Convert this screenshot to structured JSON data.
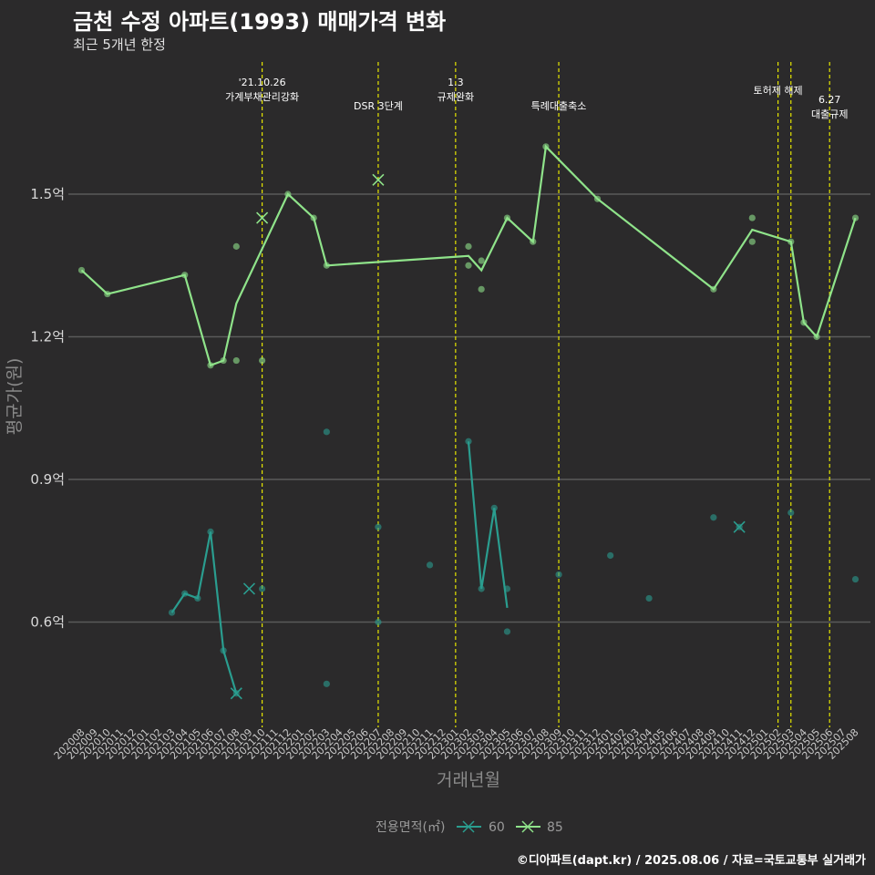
{
  "title": "금천 수정 아파트(1993) 매매가격 변화",
  "subtitle": "최근 5개년 한정",
  "caption": "©디아파트(dapt.kr) / 2025.08.06 / 자료=국토교통부 실거래가",
  "chart_data": {
    "type": "line",
    "title": "금천 수정 아파트(1993) 매매가격 변화",
    "subtitle": "최근 5개년 한정",
    "xlabel": "거래년월",
    "ylabel": "평균가(원)",
    "yticks": [
      {
        "value": 0.6,
        "label": "0.6억"
      },
      {
        "value": 0.9,
        "label": "0.9억"
      },
      {
        "value": 1.2,
        "label": "1.2억"
      },
      {
        "value": 1.5,
        "label": "1.5억"
      }
    ],
    "ylim": [
      0.415,
      1.71
    ],
    "grid": true,
    "legend": {
      "title": "전용면적(㎡)",
      "placement": "bottom",
      "entries": [
        "60",
        "85"
      ]
    },
    "colors": {
      "s60": "#2a9d8f",
      "s85": "#8fe38a",
      "event": "#e6e600",
      "grid": "#5a5a5a"
    },
    "categories": [
      "202008",
      "202009",
      "202010",
      "202011",
      "202012",
      "202101",
      "202102",
      "202103",
      "202104",
      "202105",
      "202106",
      "202107",
      "202108",
      "202109",
      "202110",
      "202111",
      "202112",
      "202201",
      "202202",
      "202203",
      "202204",
      "202205",
      "202206",
      "202207",
      "202208",
      "202209",
      "202210",
      "202211",
      "202212",
      "202301",
      "202302",
      "202303",
      "202304",
      "202305",
      "202306",
      "202307",
      "202308",
      "202309",
      "202310",
      "202311",
      "202312",
      "202401",
      "202402",
      "202403",
      "202404",
      "202405",
      "202406",
      "202407",
      "202408",
      "202409",
      "202410",
      "202411",
      "202412",
      "202501",
      "202502",
      "202503",
      "202504",
      "202505",
      "202506",
      "202507",
      "202508"
    ],
    "events": [
      {
        "x": "202110",
        "label": "'21.10.26\n가계부채관리강화"
      },
      {
        "x": "202207",
        "label": "DSR 3단계"
      },
      {
        "x": "202301",
        "label": "1.3\n규제완화"
      },
      {
        "x": "202309",
        "label": "특례대출축소"
      },
      {
        "x": "202502",
        "label": "토허제 해제"
      },
      {
        "x": "202503",
        "label": ""
      },
      {
        "x": "202506",
        "label": "6.27\n대출규제"
      }
    ],
    "series": [
      {
        "name": "85",
        "line": [
          [
            "202008",
            1.34
          ],
          [
            "202010",
            1.29
          ],
          [
            "202104",
            1.33
          ],
          [
            "202106",
            1.14
          ],
          [
            "202107",
            1.15
          ],
          [
            "202108",
            1.27
          ],
          [
            "202112",
            1.5
          ],
          [
            "202202",
            1.45
          ],
          [
            "202203",
            1.35
          ],
          [
            "202302",
            1.37
          ],
          [
            "202303",
            1.34
          ],
          [
            "202305",
            1.45
          ],
          [
            "202307",
            1.4
          ],
          [
            "202308",
            1.6
          ],
          [
            "202312",
            1.49
          ],
          [
            "202409",
            1.3
          ],
          [
            "202412",
            1.425
          ],
          [
            "202503",
            1.4
          ],
          [
            "202504",
            1.23
          ],
          [
            "202505",
            1.2
          ],
          [
            "202508",
            1.45
          ]
        ],
        "points": [
          [
            "202008",
            1.34
          ],
          [
            "202010",
            1.29
          ],
          [
            "202104",
            1.33
          ],
          [
            "202106",
            1.14
          ],
          [
            "202107",
            1.15
          ],
          [
            "202108",
            1.39
          ],
          [
            "202108",
            1.15
          ],
          [
            "202110",
            1.15
          ],
          [
            "202112",
            1.5
          ],
          [
            "202202",
            1.45
          ],
          [
            "202203",
            1.35
          ],
          [
            "202302",
            1.39
          ],
          [
            "202302",
            1.35
          ],
          [
            "202303",
            1.36
          ],
          [
            "202303",
            1.3
          ],
          [
            "202305",
            1.45
          ],
          [
            "202307",
            1.4
          ],
          [
            "202308",
            1.6
          ],
          [
            "202312",
            1.49
          ],
          [
            "202409",
            1.3
          ],
          [
            "202412",
            1.45
          ],
          [
            "202412",
            1.4
          ],
          [
            "202503",
            1.4
          ],
          [
            "202504",
            1.23
          ],
          [
            "202505",
            1.2
          ],
          [
            "202508",
            1.45
          ]
        ],
        "crosses": [
          [
            "202110",
            1.45
          ],
          [
            "202207",
            1.53
          ]
        ]
      },
      {
        "name": "60",
        "segments": [
          [
            [
              "202103",
              0.62
            ],
            [
              "202104",
              0.66
            ],
            [
              "202105",
              0.65
            ],
            [
              "202106",
              0.79
            ],
            [
              "202107",
              0.54
            ],
            [
              "202108",
              0.45
            ]
          ],
          [
            [
              "202302",
              0.98
            ],
            [
              "202303",
              0.67
            ],
            [
              "202304",
              0.84
            ],
            [
              "202305",
              0.63
            ]
          ]
        ],
        "points": [
          [
            "202103",
            0.62
          ],
          [
            "202104",
            0.66
          ],
          [
            "202105",
            0.65
          ],
          [
            "202106",
            0.79
          ],
          [
            "202107",
            0.54
          ],
          [
            "202108",
            0.45
          ],
          [
            "202110",
            0.67
          ],
          [
            "202203",
            1.0
          ],
          [
            "202203",
            0.47
          ],
          [
            "202207",
            0.8
          ],
          [
            "202207",
            0.6
          ],
          [
            "202211",
            0.72
          ],
          [
            "202302",
            0.98
          ],
          [
            "202303",
            0.67
          ],
          [
            "202304",
            0.84
          ],
          [
            "202305",
            0.67
          ],
          [
            "202305",
            0.58
          ],
          [
            "202309",
            0.7
          ],
          [
            "202401",
            0.74
          ],
          [
            "202404",
            0.65
          ],
          [
            "202409",
            0.82
          ],
          [
            "202411",
            0.8
          ],
          [
            "202503",
            0.83
          ],
          [
            "202508",
            0.69
          ]
        ],
        "crosses": [
          [
            "202108",
            0.45
          ],
          [
            "202109",
            0.67
          ],
          [
            "202411",
            0.8
          ]
        ]
      }
    ]
  }
}
